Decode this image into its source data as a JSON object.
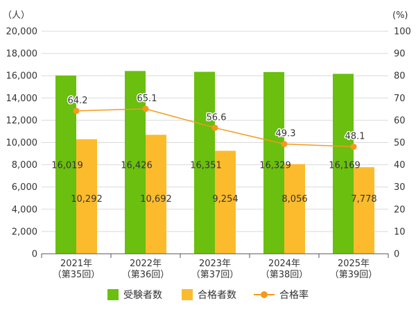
{
  "chart_data": {
    "type": "bar",
    "left_unit": "（人）",
    "right_unit": "(%)",
    "categories": [
      {
        "line1": "2021年",
        "line2": "（第35回）"
      },
      {
        "line1": "2022年",
        "line2": "（第36回）"
      },
      {
        "line1": "2023年",
        "line2": "（第37回）"
      },
      {
        "line1": "2024年",
        "line2": "（第38回）"
      },
      {
        "line1": "2025年",
        "line2": "（第39回）"
      }
    ],
    "ylim": [
      0,
      20000
    ],
    "y_ticks": [
      "0",
      "2,000",
      "4,000",
      "6,000",
      "8,000",
      "10,000",
      "12,000",
      "14,000",
      "16,000",
      "18,000",
      "20,000"
    ],
    "y2lim": [
      0,
      100
    ],
    "y2_ticks": [
      "0",
      "10",
      "20",
      "30",
      "40",
      "50",
      "60",
      "70",
      "80",
      "90",
      "100"
    ],
    "grid": true,
    "legend_position": "bottom",
    "series": [
      {
        "name": "受験者数",
        "kind": "bar",
        "axis": "left",
        "color": "#6abf0f",
        "values": [
          16019,
          16426,
          16351,
          16329,
          16169
        ],
        "labels": [
          "16,019",
          "16,426",
          "16,351",
          "16,329",
          "16,169"
        ]
      },
      {
        "name": "合格者数",
        "kind": "bar",
        "axis": "left",
        "color": "#fbbb2c",
        "values": [
          10292,
          10692,
          9254,
          8056,
          7778
        ],
        "labels": [
          "10,292",
          "10,692",
          "9,254",
          "8,056",
          "7,778"
        ]
      },
      {
        "name": "合格率",
        "kind": "line",
        "axis": "right",
        "color": "#f39a1e",
        "values": [
          64.2,
          65.1,
          56.6,
          49.3,
          48.1
        ],
        "labels": [
          "64.2",
          "65.1",
          "56.6",
          "49.3",
          "48.1"
        ]
      }
    ]
  }
}
